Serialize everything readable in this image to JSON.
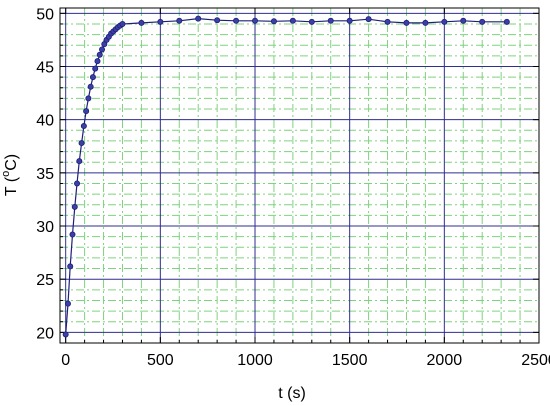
{
  "chart_data": {
    "type": "line",
    "xlabel": "t (s)",
    "ylabel": {
      "prefix": "T (",
      "superscript": "o",
      "suffix": "C)"
    },
    "xlim": [
      -30,
      2500
    ],
    "ylim": [
      19,
      50.5
    ],
    "x_ticks": [
      0,
      500,
      1000,
      1500,
      2000,
      2500
    ],
    "y_ticks": [
      20,
      25,
      30,
      35,
      40,
      45,
      50
    ],
    "x_minor_ticks": [
      100,
      200,
      300,
      400,
      600,
      700,
      800,
      900,
      1100,
      1200,
      1300,
      1400,
      1600,
      1700,
      1800,
      1900,
      2100,
      2200,
      2300,
      2400
    ],
    "y_minor_ticks": [
      21,
      22,
      23,
      24,
      26,
      27,
      28,
      29,
      31,
      32,
      33,
      34,
      36,
      37,
      38,
      39,
      41,
      42,
      43,
      44,
      46,
      47,
      48,
      49
    ],
    "grid": {
      "major": true,
      "minor": true,
      "major_color": "#2e2f8f",
      "minor_color": "#7fd27f"
    },
    "series": [
      {
        "color": "#1f1f7a",
        "marker": "circle",
        "x": [
          0,
          12,
          24,
          36,
          48,
          60,
          72,
          84,
          96,
          108,
          120,
          132,
          144,
          156,
          168,
          180,
          192,
          204,
          216,
          228,
          240,
          252,
          264,
          276,
          288,
          300,
          400,
          500,
          600,
          700,
          800,
          900,
          1000,
          1100,
          1200,
          1300,
          1400,
          1500,
          1600,
          1700,
          1800,
          1900,
          2000,
          2100,
          2200,
          2330
        ],
        "y": [
          19.8,
          22.7,
          26.2,
          29.2,
          31.8,
          34.0,
          36.1,
          37.8,
          39.4,
          40.8,
          42.0,
          43.1,
          44.0,
          44.8,
          45.5,
          46.1,
          46.6,
          47.1,
          47.5,
          47.8,
          48.1,
          48.3,
          48.5,
          48.7,
          48.85,
          49.0,
          49.1,
          49.2,
          49.3,
          49.5,
          49.35,
          49.3,
          49.3,
          49.25,
          49.3,
          49.2,
          49.3,
          49.3,
          49.45,
          49.2,
          49.1,
          49.1,
          49.2,
          49.3,
          49.2,
          49.2
        ]
      }
    ]
  }
}
